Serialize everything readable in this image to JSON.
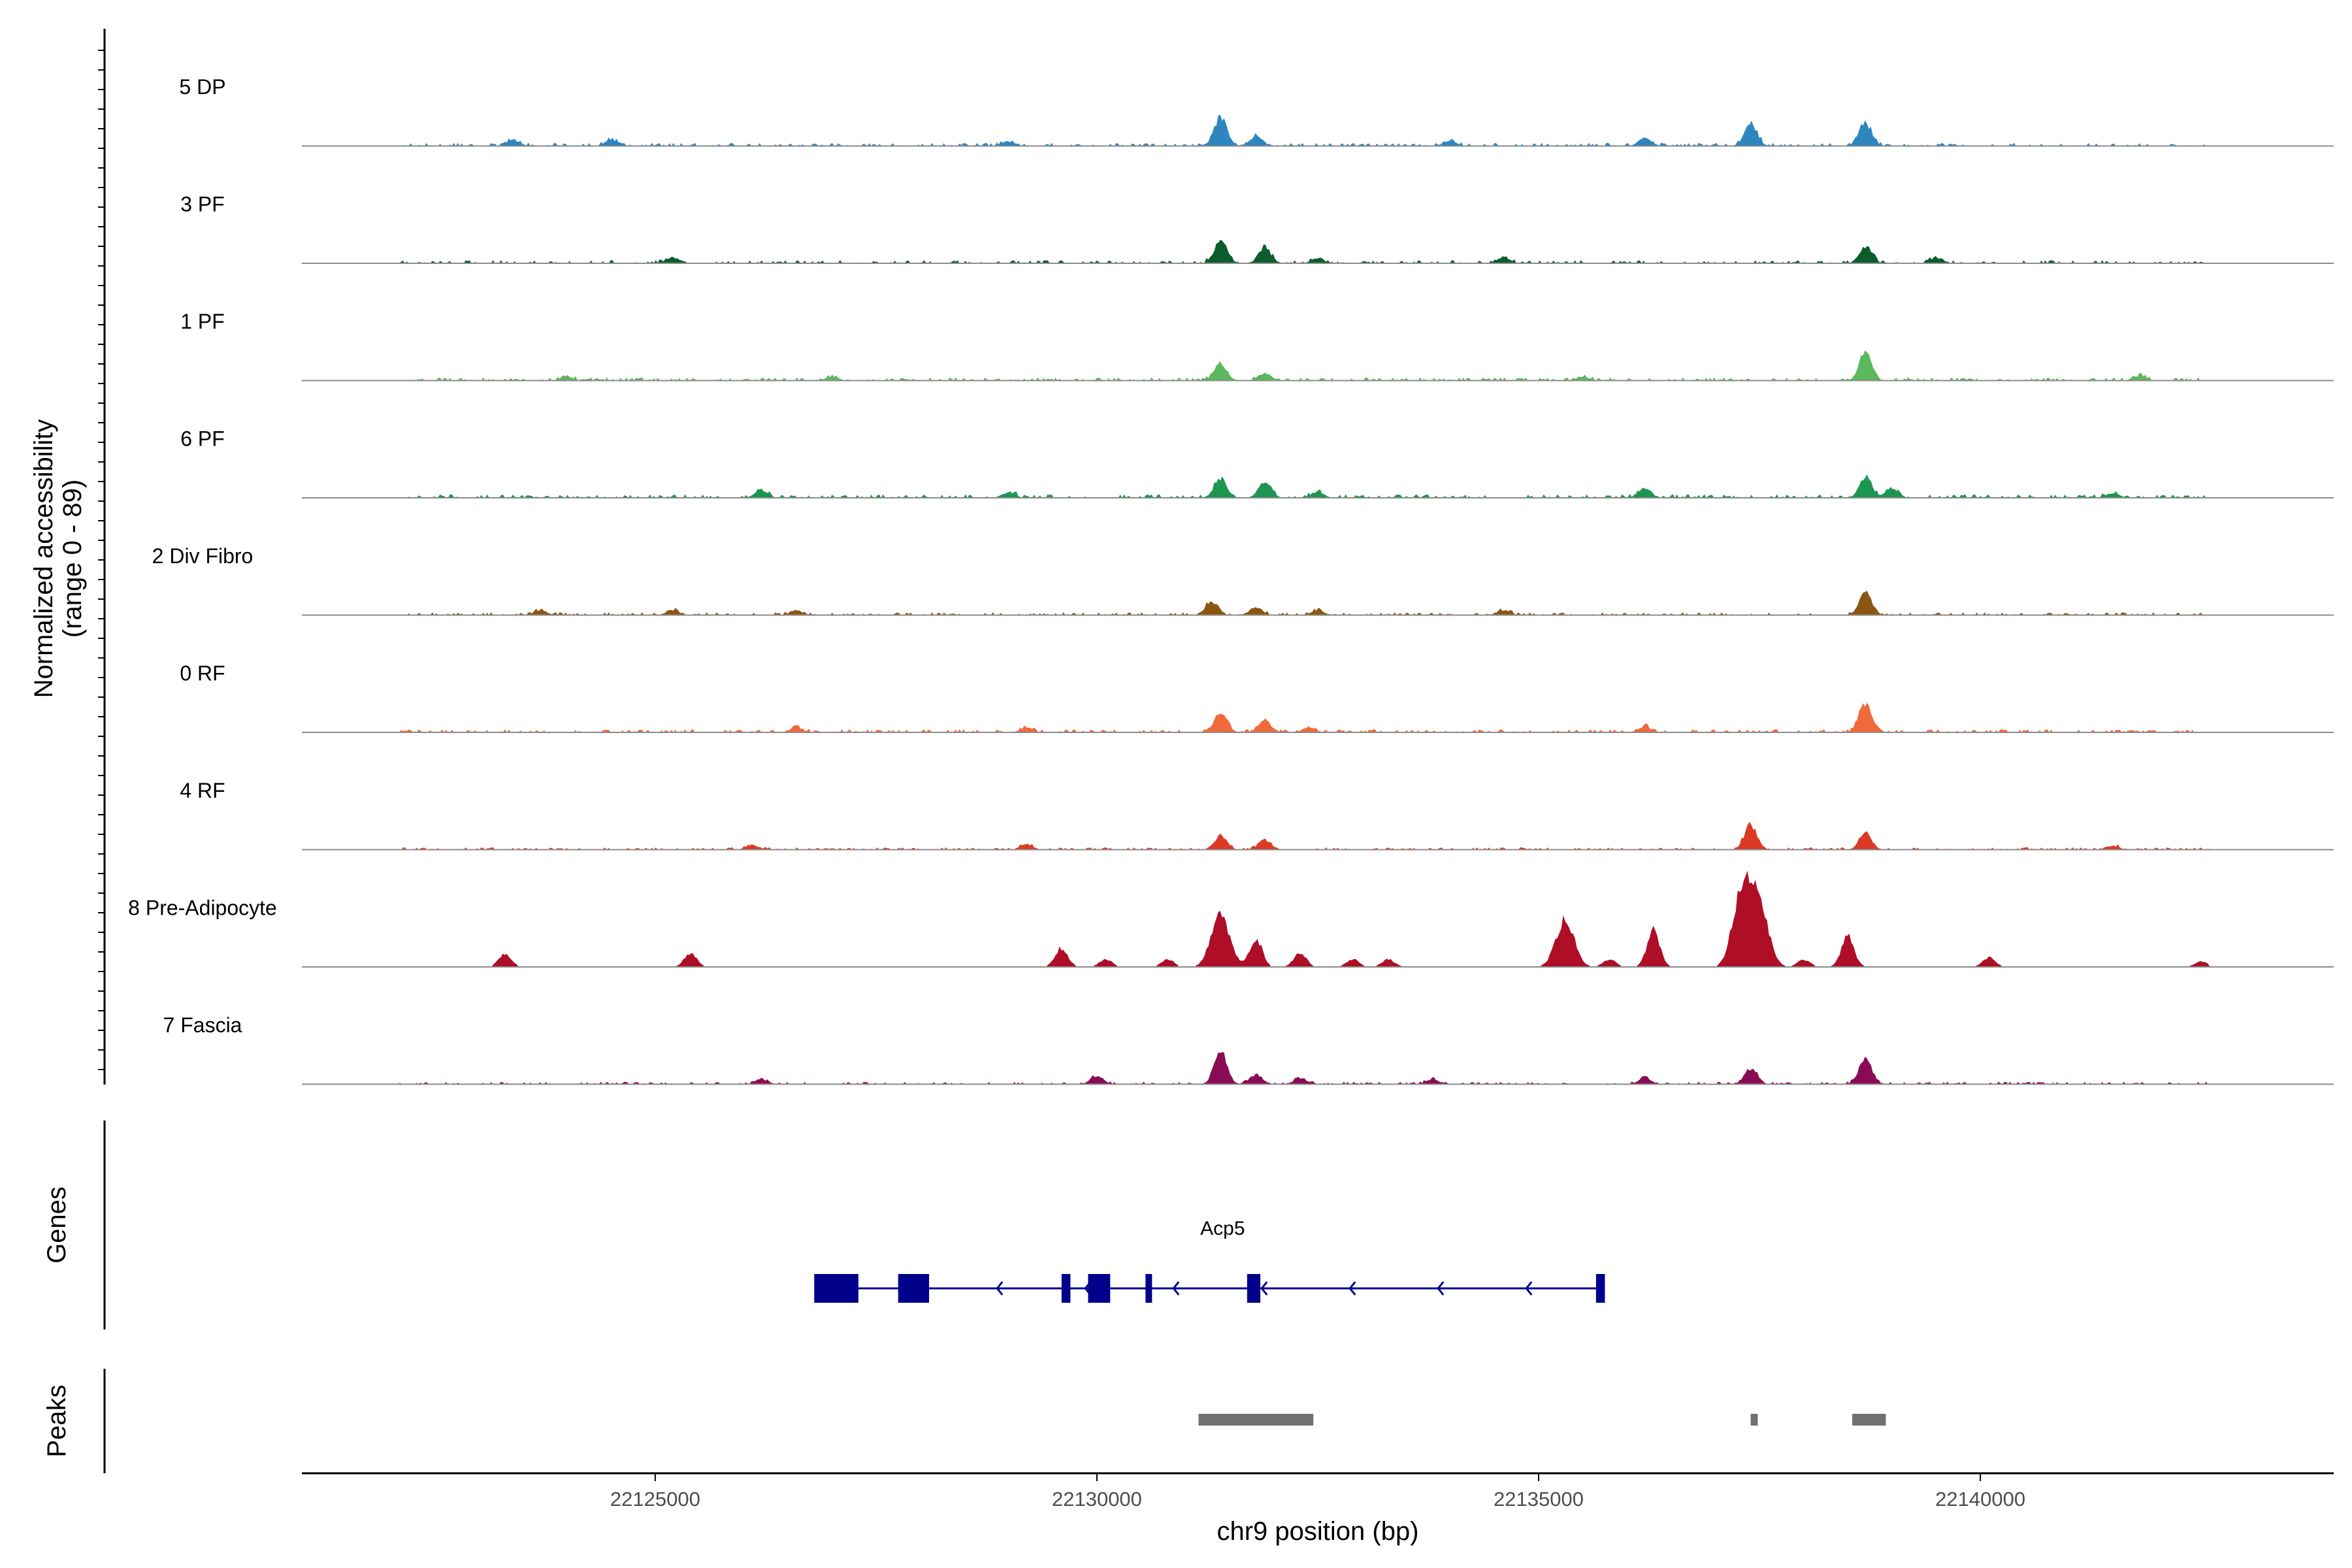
{
  "chart_data": {
    "type": "area",
    "title": "",
    "y_axis_label_line1": "Normalized accessibility",
    "y_axis_label_line2": "(range 0 - 89)",
    "yrange": [
      0,
      89
    ],
    "genes_label": "Genes",
    "peaks_label": "Peaks",
    "xlabel": "chr9 position (bp)",
    "xlim": [
      22121000,
      22144000
    ],
    "xticks": [
      22125000,
      22130000,
      22135000,
      22140000
    ],
    "xtick_labels": [
      "22125000",
      "22130000",
      "22135000",
      "22140000"
    ],
    "coverage_start": 22122100,
    "coverage_end": 22142600,
    "tracks": [
      {
        "name": "5 DP",
        "color": "#2e86c1",
        "noise": 0.08,
        "peaks": [
          [
            22131400,
            30
          ],
          [
            22131800,
            10
          ],
          [
            22136200,
            8
          ],
          [
            22137400,
            24
          ],
          [
            22138700,
            24
          ],
          [
            22123400,
            6
          ],
          [
            22124500,
            6
          ],
          [
            22129000,
            5
          ],
          [
            22134000,
            5
          ]
        ]
      },
      {
        "name": "3 PF",
        "color": "#0b5e2c",
        "noise": 0.08,
        "peaks": [
          [
            22131400,
            24
          ],
          [
            22131900,
            16
          ],
          [
            22132500,
            5
          ],
          [
            22138700,
            18
          ],
          [
            22125200,
            6
          ],
          [
            22134600,
            6
          ],
          [
            22139500,
            5
          ]
        ]
      },
      {
        "name": "1 PF",
        "color": "#5cb85c",
        "noise": 0.08,
        "peaks": [
          [
            22131400,
            18
          ],
          [
            22131900,
            8
          ],
          [
            22138700,
            28
          ],
          [
            22141800,
            5
          ],
          [
            22124000,
            4
          ],
          [
            22127000,
            4
          ],
          [
            22135500,
            4
          ]
        ]
      },
      {
        "name": "6 PF",
        "color": "#1e9652",
        "noise": 0.09,
        "peaks": [
          [
            22131400,
            20
          ],
          [
            22131900,
            16
          ],
          [
            22132500,
            6
          ],
          [
            22126200,
            8
          ],
          [
            22136200,
            8
          ],
          [
            22138700,
            20
          ],
          [
            22139000,
            10
          ],
          [
            22129000,
            6
          ],
          [
            22141500,
            5
          ]
        ]
      },
      {
        "name": "2 Div Fibro",
        "color": "#8a5612",
        "noise": 0.07,
        "peaks": [
          [
            22131300,
            14
          ],
          [
            22131800,
            8
          ],
          [
            22132500,
            5
          ],
          [
            22138700,
            24
          ],
          [
            22125200,
            5
          ],
          [
            22126600,
            5
          ],
          [
            22134600,
            5
          ],
          [
            22123700,
            5
          ]
        ]
      },
      {
        "name": "0 RF",
        "color": "#f06a3c",
        "noise": 0.08,
        "peaks": [
          [
            22131400,
            22
          ],
          [
            22131900,
            12
          ],
          [
            22132400,
            5
          ],
          [
            22136200,
            6
          ],
          [
            22138700,
            30
          ],
          [
            22126600,
            5
          ],
          [
            22129200,
            4
          ]
        ]
      },
      {
        "name": "4 RF",
        "color": "#dd3a25",
        "noise": 0.06,
        "peaks": [
          [
            22131400,
            14
          ],
          [
            22131900,
            10
          ],
          [
            22137400,
            26
          ],
          [
            22138700,
            16
          ],
          [
            22126100,
            5
          ],
          [
            22129200,
            5
          ],
          [
            22141500,
            4
          ]
        ]
      },
      {
        "name": "8 Pre-Adipocyte",
        "color": "#ae0e26",
        "noise": 0.0,
        "peaks": [
          [
            22131400,
            55
          ],
          [
            22131800,
            30
          ],
          [
            22132300,
            14
          ],
          [
            22135300,
            48
          ],
          [
            22136300,
            38
          ],
          [
            22137300,
            80
          ],
          [
            22137500,
            60
          ],
          [
            22138500,
            32
          ],
          [
            22123300,
            14
          ],
          [
            22125400,
            14
          ],
          [
            22129600,
            20
          ],
          [
            22130100,
            8
          ],
          [
            22130800,
            8
          ],
          [
            22132900,
            8
          ],
          [
            22133300,
            8
          ],
          [
            22135800,
            8
          ],
          [
            22138000,
            8
          ],
          [
            22140100,
            10
          ],
          [
            22142500,
            6
          ]
        ]
      },
      {
        "name": "7 Fascia",
        "color": "#8a0b55",
        "noise": 0.06,
        "peaks": [
          [
            22131400,
            34
          ],
          [
            22131800,
            10
          ],
          [
            22132300,
            6
          ],
          [
            22136200,
            6
          ],
          [
            22137400,
            16
          ],
          [
            22138700,
            28
          ],
          [
            22130000,
            8
          ],
          [
            22126200,
            5
          ],
          [
            22133800,
            5
          ]
        ]
      }
    ],
    "genes": [
      {
        "name": "Acp5",
        "strand": "-",
        "start": 22126800,
        "end": 22135750,
        "exons": [
          [
            22126800,
            22127300
          ],
          [
            22127750,
            22128100
          ],
          [
            22129600,
            22129700
          ],
          [
            22129900,
            22130150
          ],
          [
            22130550,
            22130600
          ],
          [
            22131700,
            22131850
          ],
          [
            22135650,
            22135750
          ]
        ]
      }
    ],
    "peak_regions": [
      [
        22131150,
        22132450
      ],
      [
        22137400,
        22137480
      ],
      [
        22138550,
        22138930
      ]
    ]
  }
}
